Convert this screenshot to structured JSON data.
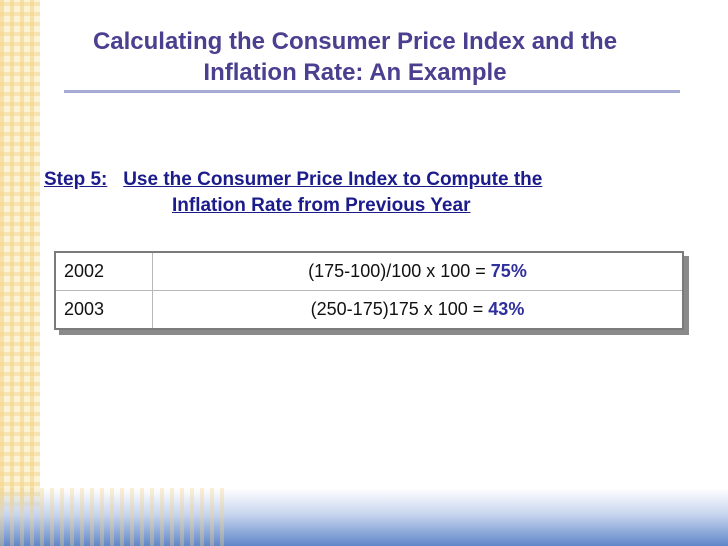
{
  "title": {
    "line1": "Calculating the Consumer Price Index and the",
    "line2": "Inflation Rate: An Example"
  },
  "step": {
    "label": "Step 5:",
    "line1": "Use the Consumer Price Index to Compute the",
    "line2": "Inflation Rate from Previous Year"
  },
  "table": {
    "rows": [
      {
        "year": "2002",
        "formula": "(175-100)/100 x 100 = ",
        "result": "75%"
      },
      {
        "year": "2003",
        "formula": "(250-175)175 x 100 = ",
        "result": "43%"
      }
    ]
  },
  "colors": {
    "title": "#4b3f8f",
    "step": "#1b1b8c",
    "result": "#2f2f9e"
  }
}
